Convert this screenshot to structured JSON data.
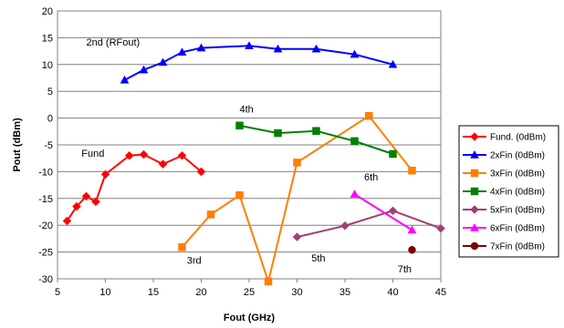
{
  "chart_data": {
    "type": "line",
    "title": "",
    "xlabel": "Fout (GHz)",
    "ylabel": "Pout (dBm)",
    "xlim": [
      5,
      45
    ],
    "ylim": [
      -30,
      20
    ],
    "xticks": [
      5,
      10,
      15,
      20,
      25,
      30,
      35,
      40,
      45
    ],
    "yticks": [
      -30,
      -25,
      -20,
      -15,
      -10,
      -5,
      0,
      5,
      10,
      15,
      20
    ],
    "grid": "horizontal",
    "legend_position": "right",
    "series": [
      {
        "name": "Fund. (0dBm)",
        "color": "#ff0000",
        "marker": "diamond",
        "points": [
          [
            6,
            -19.2
          ],
          [
            7,
            -16.5
          ],
          [
            8,
            -14.6
          ],
          [
            9,
            -15.6
          ],
          [
            10,
            -10.5
          ],
          [
            12.5,
            -7
          ],
          [
            14,
            -6.8
          ],
          [
            16,
            -8.6
          ],
          [
            18,
            -7
          ],
          [
            20,
            -10
          ]
        ]
      },
      {
        "name": "2xFin (0dBm)",
        "color": "#0000ff",
        "marker": "triangle",
        "points": [
          [
            12,
            7.1
          ],
          [
            14,
            9
          ],
          [
            16,
            10.4
          ],
          [
            18,
            12.3
          ],
          [
            20,
            13.1
          ],
          [
            25,
            13.5
          ],
          [
            28,
            12.9
          ],
          [
            32,
            12.9
          ],
          [
            36,
            11.9
          ],
          [
            40,
            10
          ]
        ]
      },
      {
        "name": "3xFin (0dBm)",
        "color": "#ff7f00",
        "marker": "square",
        "points": [
          [
            18,
            -24.1
          ],
          [
            21,
            -18
          ],
          [
            24,
            -14.4
          ],
          [
            27,
            -30.5
          ],
          [
            30,
            -8.3
          ],
          [
            37.5,
            0.4
          ],
          [
            42,
            -9.8
          ]
        ]
      },
      {
        "name": "4xFin (0dBm)",
        "color": "#008000",
        "marker": "square",
        "points": [
          [
            24,
            -1.4
          ],
          [
            28,
            -2.8
          ],
          [
            32,
            -2.4
          ],
          [
            36,
            -4.3
          ],
          [
            40,
            -6.7
          ]
        ]
      },
      {
        "name": "5xFin (0dBm)",
        "color": "#a04070",
        "marker": "diamond",
        "points": [
          [
            30,
            -22.2
          ],
          [
            35,
            -20.1
          ],
          [
            40,
            -17.3
          ],
          [
            45,
            -20.6
          ]
        ]
      },
      {
        "name": "6xFin (0dBm)",
        "color": "#ff00ff",
        "marker": "triangle",
        "points": [
          [
            36,
            -14.2
          ],
          [
            42,
            -20.9
          ]
        ]
      },
      {
        "name": "7xFin (0dBm)",
        "color": "#800000",
        "marker": "circle",
        "points": [
          [
            42,
            -24.6
          ]
        ]
      }
    ],
    "annotations": [
      {
        "text": "2nd (RFout)",
        "x": 8,
        "y": 13.5
      },
      {
        "text": "4th",
        "x": 24,
        "y": 1
      },
      {
        "text": "Fund",
        "x": 7.5,
        "y": -7.2
      },
      {
        "text": "6th",
        "x": 37,
        "y": -11.6
      },
      {
        "text": "3rd",
        "x": 18.5,
        "y": -27.2
      },
      {
        "text": "5th",
        "x": 31.5,
        "y": -26.8
      },
      {
        "text": "7th",
        "x": 40.5,
        "y": -28.8
      }
    ]
  }
}
